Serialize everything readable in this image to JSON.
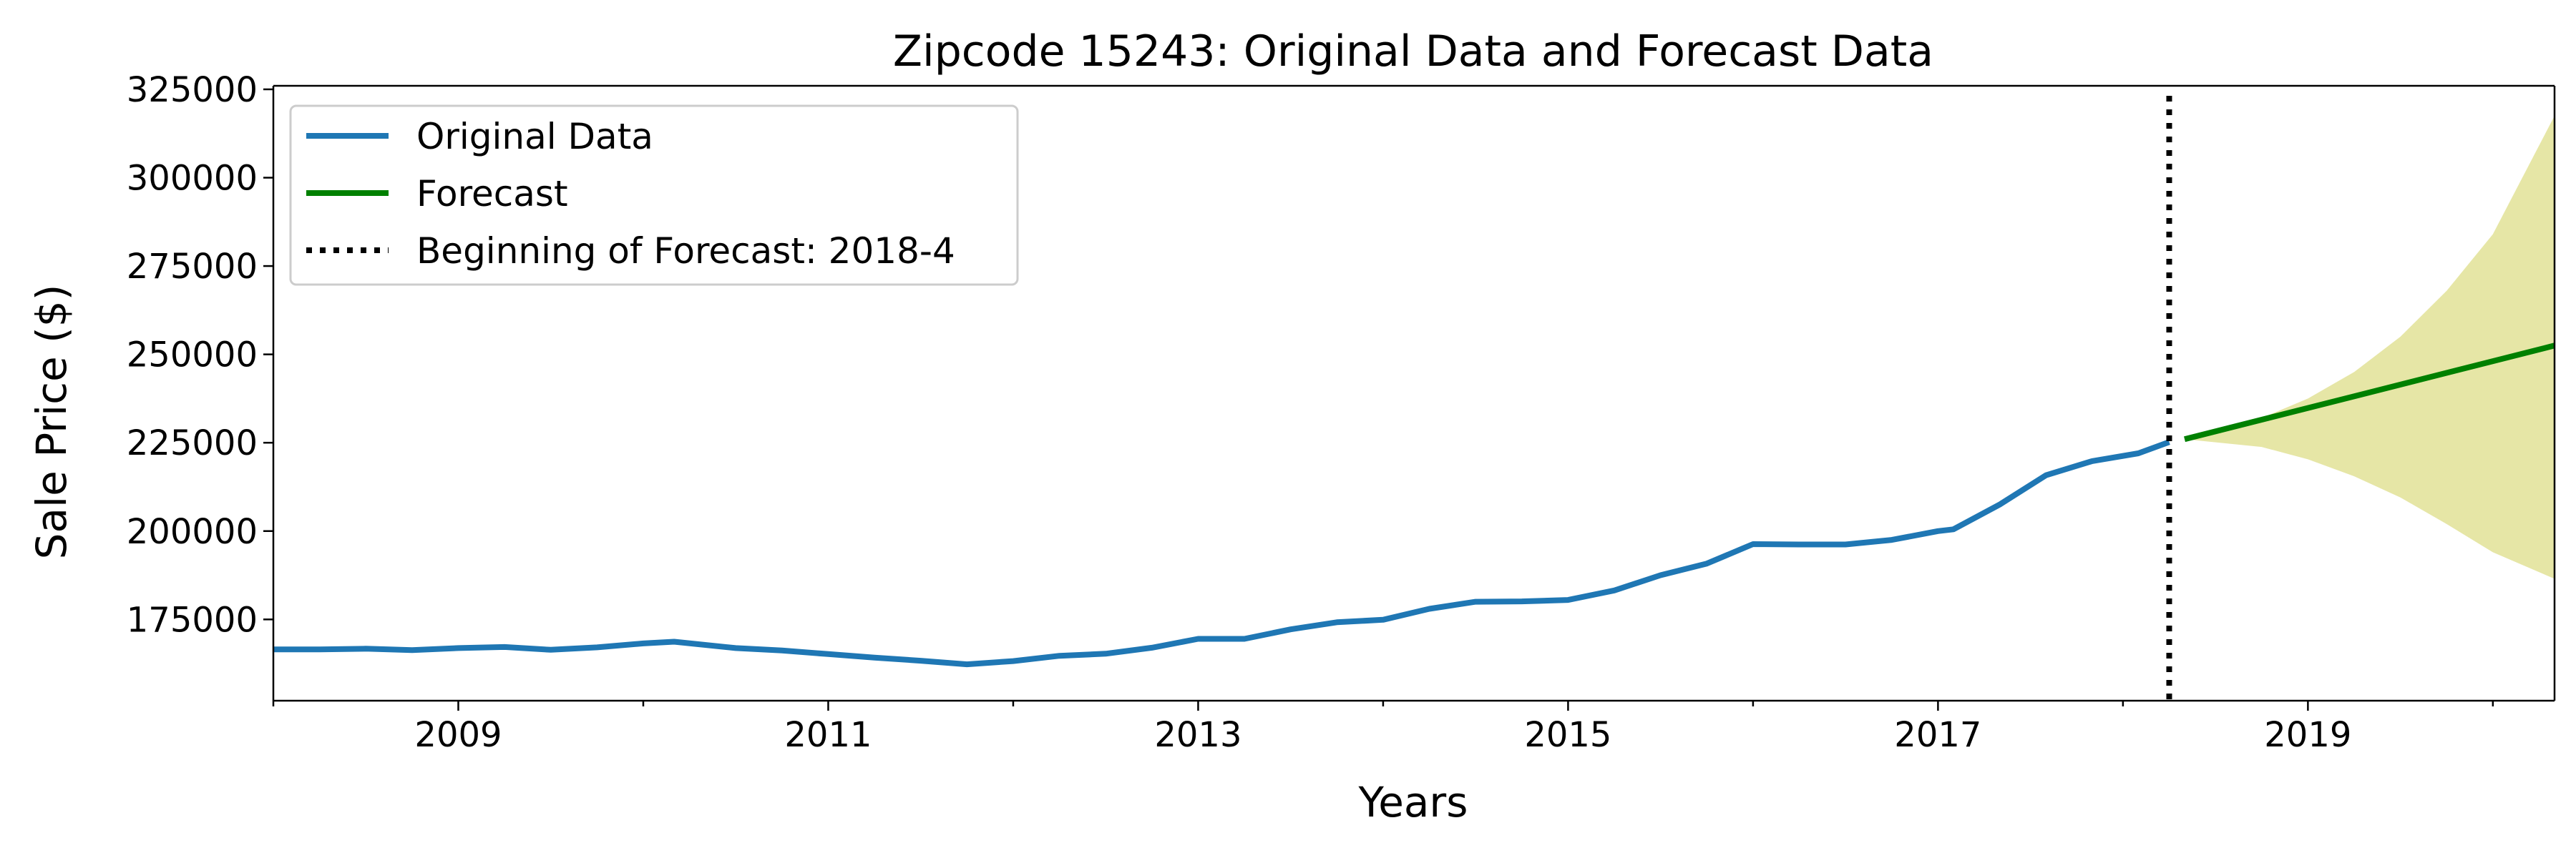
{
  "chart_data": {
    "type": "line",
    "title": "Zipcode 15243: Original Data and Forecast Data",
    "xlabel": "Years",
    "ylabel": "Sale Price ($)",
    "xlim": [
      "2008-01",
      "2020-05"
    ],
    "ylim": [
      152000,
      326000
    ],
    "x_ticks": [
      2009,
      2011,
      2013,
      2015,
      2017,
      2019
    ],
    "y_ticks": [
      175000,
      200000,
      225000,
      250000,
      275000,
      300000,
      325000
    ],
    "grid": false,
    "legend_position": "upper left",
    "series": [
      {
        "name": "Original Data",
        "style": "solid",
        "color": "#1f77b4",
        "x": [
          "2008-01",
          "2008-04",
          "2008-07",
          "2008-10",
          "2009-01",
          "2009-04",
          "2009-07",
          "2009-10",
          "2010-01",
          "2010-03",
          "2010-07",
          "2010-10",
          "2011-01",
          "2011-04",
          "2011-07",
          "2011-10",
          "2012-01",
          "2012-04",
          "2012-07",
          "2012-10",
          "2013-01",
          "2013-04",
          "2013-07",
          "2013-10",
          "2014-01",
          "2014-04",
          "2014-07",
          "2014-10",
          "2015-01",
          "2015-04",
          "2015-07",
          "2015-10",
          "2016-01",
          "2016-04",
          "2016-07",
          "2016-10",
          "2017-01",
          "2017-02",
          "2017-05",
          "2017-08",
          "2017-11",
          "2018-02",
          "2018-04"
        ],
        "y": [
          166500,
          166500,
          166700,
          166300,
          166900,
          167200,
          166400,
          167100,
          168200,
          168700,
          166900,
          166200,
          165200,
          164200,
          163300,
          162300,
          163200,
          164700,
          165300,
          167000,
          169500,
          169500,
          172200,
          174200,
          174900,
          178000,
          180000,
          180100,
          180500,
          183200,
          187500,
          190800,
          196300,
          196200,
          196200,
          197500,
          200000,
          200500,
          207500,
          215800,
          219800,
          222000,
          225200
        ]
      },
      {
        "name": "Forecast",
        "style": "solid",
        "color": "#008000",
        "x": [
          "2018-05",
          "2020-05"
        ],
        "y": [
          226000,
          252500
        ]
      },
      {
        "name": "Beginning of Forecast: 2018-4",
        "style": "dotted",
        "color": "#000000",
        "vertical_line_at": "2018-04"
      }
    ],
    "confidence_band": {
      "color": "#e6e6a6",
      "x": [
        "2018-05",
        "2018-10",
        "2019-01",
        "2019-04",
        "2019-07",
        "2019-10",
        "2020-01",
        "2020-05"
      ],
      "lower": [
        226000,
        223800,
        220300,
        215500,
        209500,
        202000,
        194000,
        186500
      ],
      "upper": [
        226000,
        232000,
        237500,
        245000,
        255000,
        268000,
        284000,
        317500
      ]
    }
  }
}
